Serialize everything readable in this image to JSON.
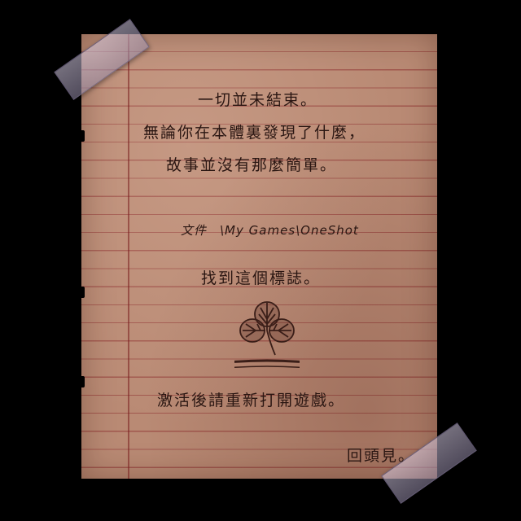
{
  "note": {
    "line1": "一切並未結束。",
    "line2": "無論你在本體裏發現了什麼，",
    "line3": "故事並沒有那麼簡單。",
    "path": "文件　\\My Games\\OneShot",
    "find_symbol": "找到這個標誌。",
    "activate": "激活後請重新打開遊戲。",
    "signoff": "回頭見。"
  },
  "symbol": {
    "icon": "clover-icon"
  },
  "colors": {
    "paper": "#b98a74",
    "ink": "#2a1612",
    "background": "#000000",
    "tape": "#b4aac8"
  }
}
